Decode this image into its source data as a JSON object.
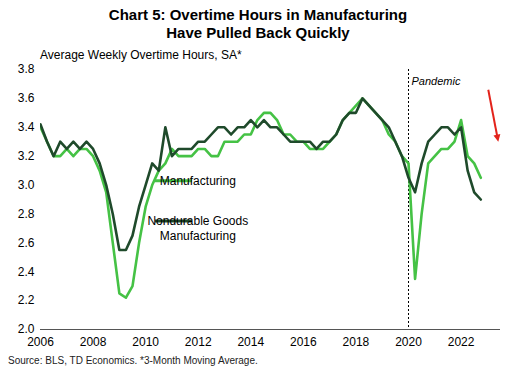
{
  "chart_data": {
    "type": "line",
    "title": "Chart 5: Overtime Hours in Manufacturing Have Pulled Back Quickly",
    "ylabel": "Average Weekly Overtime Hours, SA*",
    "caption": "Source: BLS, TD Economics.  *3-Month Moving Average.",
    "x": [
      2006,
      2006.25,
      2006.5,
      2006.75,
      2007,
      2007.25,
      2007.5,
      2007.75,
      2008,
      2008.25,
      2008.5,
      2008.75,
      2009,
      2009.25,
      2009.5,
      2009.75,
      2010,
      2010.25,
      2010.5,
      2010.75,
      2011,
      2011.25,
      2011.5,
      2011.75,
      2012,
      2012.25,
      2012.5,
      2012.75,
      2013,
      2013.25,
      2013.5,
      2013.75,
      2014,
      2014.25,
      2014.5,
      2014.75,
      2015,
      2015.25,
      2015.5,
      2015.75,
      2016,
      2016.25,
      2016.5,
      2016.75,
      2017,
      2017.25,
      2017.5,
      2017.75,
      2018,
      2018.25,
      2018.5,
      2018.75,
      2019,
      2019.25,
      2019.5,
      2019.75,
      2020,
      2020.25,
      2020.5,
      2020.75,
      2021,
      2021.25,
      2021.5,
      2021.75,
      2022,
      2022.25,
      2022.5,
      2022.75
    ],
    "series": [
      {
        "name": "Manufacturing",
        "color": "#45c245",
        "values": [
          3.4,
          3.3,
          3.2,
          3.2,
          3.25,
          3.2,
          3.25,
          3.25,
          3.2,
          3.1,
          2.95,
          2.6,
          2.25,
          2.22,
          2.3,
          2.6,
          2.85,
          3.0,
          3.1,
          3.15,
          3.25,
          3.2,
          3.2,
          3.2,
          3.25,
          3.25,
          3.2,
          3.2,
          3.3,
          3.3,
          3.3,
          3.35,
          3.35,
          3.45,
          3.5,
          3.5,
          3.45,
          3.35,
          3.35,
          3.3,
          3.3,
          3.25,
          3.25,
          3.25,
          3.3,
          3.35,
          3.45,
          3.5,
          3.55,
          3.6,
          3.55,
          3.5,
          3.45,
          3.35,
          3.3,
          3.2,
          3.15,
          2.35,
          2.8,
          3.15,
          3.2,
          3.25,
          3.25,
          3.3,
          3.45,
          3.2,
          3.15,
          3.05
        ]
      },
      {
        "name": "Nondurable Goods Manufacturing",
        "color": "#1f4a2b",
        "values": [
          3.42,
          3.3,
          3.2,
          3.3,
          3.25,
          3.3,
          3.25,
          3.3,
          3.25,
          3.15,
          3.0,
          2.8,
          2.55,
          2.55,
          2.65,
          2.85,
          3.0,
          3.15,
          3.1,
          3.4,
          3.2,
          3.25,
          3.25,
          3.25,
          3.3,
          3.3,
          3.35,
          3.4,
          3.4,
          3.35,
          3.4,
          3.4,
          3.45,
          3.4,
          3.45,
          3.4,
          3.4,
          3.35,
          3.3,
          3.3,
          3.3,
          3.3,
          3.25,
          3.3,
          3.3,
          3.35,
          3.45,
          3.5,
          3.5,
          3.6,
          3.55,
          3.5,
          3.45,
          3.4,
          3.3,
          3.2,
          3.05,
          2.95,
          3.15,
          3.3,
          3.35,
          3.4,
          3.4,
          3.35,
          3.4,
          3.1,
          2.95,
          2.9
        ]
      }
    ],
    "xlim": [
      2006,
      2023.5
    ],
    "xticks": [
      2006,
      2008,
      2010,
      2012,
      2014,
      2016,
      2018,
      2020,
      2022
    ],
    "ylim": [
      2.0,
      3.8
    ],
    "yticks": [
      {
        "value": 2.0,
        "label": "2.0"
      },
      2.2,
      2.4,
      2.6,
      2.8,
      {
        "value": 3.0,
        "label": "3.0"
      },
      3.2,
      3.4,
      3.6,
      3.8
    ],
    "grid": false,
    "annotations": [
      {
        "text": "Pandemic",
        "x": 2020,
        "line_style": "dotted"
      }
    ]
  }
}
